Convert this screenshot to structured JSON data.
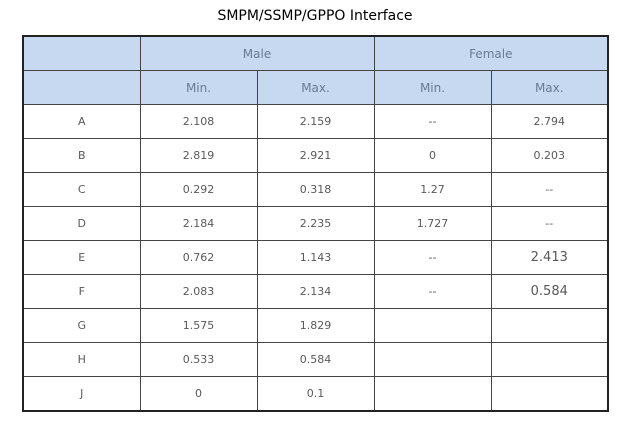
{
  "title": "SMPM/SSMP/GPPO Interface",
  "table": {
    "groups": [
      "Male",
      "Female"
    ],
    "subheaders": [
      "Min.",
      "Max.",
      "Min.",
      "Max."
    ],
    "rows": [
      [
        "A",
        "2.108",
        "2.159",
        "--",
        "2.794"
      ],
      [
        "B",
        "2.819",
        "2.921",
        "0",
        "0.203"
      ],
      [
        "C",
        "0.292",
        "0.318",
        "1.27",
        "--"
      ],
      [
        "D",
        "2.184",
        "2.235",
        "1.727",
        "--"
      ],
      [
        "E",
        "0.762",
        "1.143",
        "--",
        "2.413"
      ],
      [
        "F",
        "2.083",
        "2.134",
        "--",
        "0.584"
      ],
      [
        "G",
        "1.575",
        "1.829",
        null,
        null
      ],
      [
        "H",
        "0.533",
        "0.584",
        null,
        null
      ],
      [
        "J",
        "0",
        "0.1",
        null,
        null
      ]
    ]
  }
}
